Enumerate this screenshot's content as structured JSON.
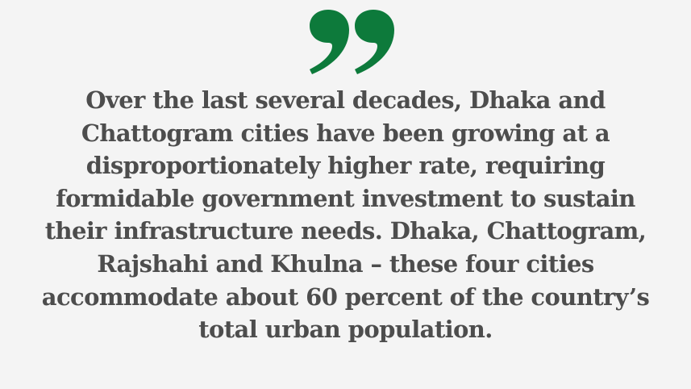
{
  "colors": {
    "background": "#f4f4f4",
    "quote_mark": "#0d7a3b",
    "text": "#4d4d4d"
  },
  "icon": "closing-quotation-mark",
  "quote": {
    "lines": [
      "Over the last several decades, Dhaka and",
      "Chattogram cities have been growing at a",
      "disproportionately higher rate, requiring",
      "formidable government investment to sustain",
      "their infrastructure needs. Dhaka, Chattogram,",
      "Rajshahi and Khulna – these four cities",
      "accommodate about 60 percent of the country’s",
      "total urban population."
    ]
  }
}
